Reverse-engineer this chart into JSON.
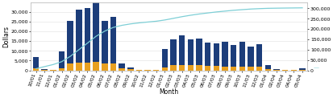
{
  "months": [
    "10/01",
    "11/01",
    "12/01",
    "01/02",
    "02/02",
    "03/02",
    "04/02",
    "05/02",
    "06/02",
    "07/02",
    "08/02",
    "09/02",
    "10/02",
    "11/02",
    "12/02",
    "01/03",
    "02/03",
    "03/03",
    "04/03",
    "05/03",
    "06/03",
    "07/03",
    "08/03",
    "09/03",
    "10/03",
    "11/03",
    "12/03",
    "01/04",
    "02/04",
    "03/04",
    "04/04",
    "05/04"
  ],
  "blue_vals": [
    6000,
    500,
    200,
    8500,
    22000,
    27000,
    28000,
    31000,
    22000,
    24000,
    2500,
    800,
    100,
    100,
    100,
    9500,
    13500,
    15000,
    13500,
    14000,
    12000,
    11500,
    12500,
    11000,
    12500,
    10500,
    11500,
    2000,
    600,
    200,
    150,
    800
  ],
  "orange_vals": [
    900,
    200,
    100,
    1200,
    3500,
    4000,
    4000,
    4500,
    3500,
    3500,
    1000,
    800,
    100,
    50,
    50,
    1500,
    2500,
    2800,
    2500,
    2500,
    2200,
    2200,
    2000,
    2000,
    2000,
    1800,
    1800,
    500,
    100,
    100,
    50,
    300
  ],
  "line_vals": [
    8000,
    18000,
    28000,
    42000,
    68000,
    100000,
    132000,
    165000,
    190000,
    208000,
    218000,
    225000,
    230000,
    234000,
    238000,
    244000,
    252000,
    260000,
    267000,
    273000,
    278000,
    283000,
    287000,
    291000,
    294000,
    297000,
    299000,
    300500,
    301200,
    301800,
    302300,
    302800
  ],
  "bar_color": "#1c3d7a",
  "orange_color": "#e8a020",
  "line_color": "#7ecfd6",
  "ylabel_left": "Dollars",
  "ylabel_right": "",
  "xlabel": "Month",
  "ylim_left": [
    0,
    35000
  ],
  "ylim_right": [
    0,
    330000
  ],
  "yticks_left": [
    0,
    5000,
    10000,
    15000,
    20000,
    25000,
    30000
  ],
  "yticks_right": [
    0,
    50000,
    100000,
    150000,
    200000,
    250000,
    300000
  ],
  "bg_color": "#ffffff",
  "plot_bg": "#ffffff",
  "tick_fontsize": 4.5,
  "label_fontsize": 5.5,
  "bar_width": 0.7
}
